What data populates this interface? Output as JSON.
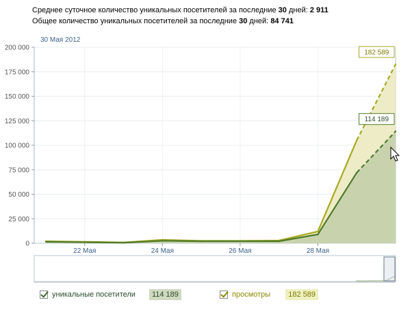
{
  "summary": {
    "avg_prefix": "Среднее суточное количество уникальных посетителей за последние ",
    "avg_days": "30",
    "avg_mid": " дней: ",
    "avg_value": "2 911",
    "total_prefix": "Общее количество уникальных посетителей за последние ",
    "total_days": "30",
    "total_mid": " дней: ",
    "total_value": "84 741"
  },
  "date_label": "30 Мая 2012",
  "colors": {
    "unique": "#4f7a2a",
    "unique_fill": "#c8d3ae",
    "views": "#a8a820",
    "views_fill": "#ecebc4"
  },
  "chart_data": {
    "type": "area",
    "ylim": [
      0,
      200000
    ],
    "yticks": [
      0,
      25000,
      50000,
      75000,
      100000,
      125000,
      150000,
      175000,
      200000
    ],
    "ytick_labels": [
      "0",
      "25 000",
      "50 000",
      "75 000",
      "100 000",
      "125 000",
      "150 000",
      "175 000",
      "200 000"
    ],
    "x": [
      0,
      1,
      2,
      3,
      4,
      5,
      6,
      7,
      8,
      9
    ],
    "xtick_labels": [
      {
        "x": 1,
        "label": "22 Мая"
      },
      {
        "x": 3,
        "label": "24 Мая"
      },
      {
        "x": 5,
        "label": "26 Мая"
      },
      {
        "x": 7,
        "label": "28 Мая"
      }
    ],
    "xlim": [
      -0.3,
      9
    ],
    "series": [
      {
        "name": "просмотры",
        "values": [
          2000,
          1500,
          800,
          3500,
          2500,
          2500,
          2800,
          12000,
          105000,
          182589
        ],
        "projected_from": 8,
        "callout": "182 589"
      },
      {
        "name": "уникальные посетители",
        "values": [
          1500,
          1000,
          500,
          2500,
          2000,
          2000,
          2000,
          9000,
          72000,
          114189
        ],
        "projected_from": 8,
        "callout": "114 189"
      }
    ],
    "grid": true
  },
  "legend": {
    "unique_label": "уникальные посетители",
    "unique_value": "114 189",
    "views_label": "просмотры",
    "views_value": "182 589"
  }
}
